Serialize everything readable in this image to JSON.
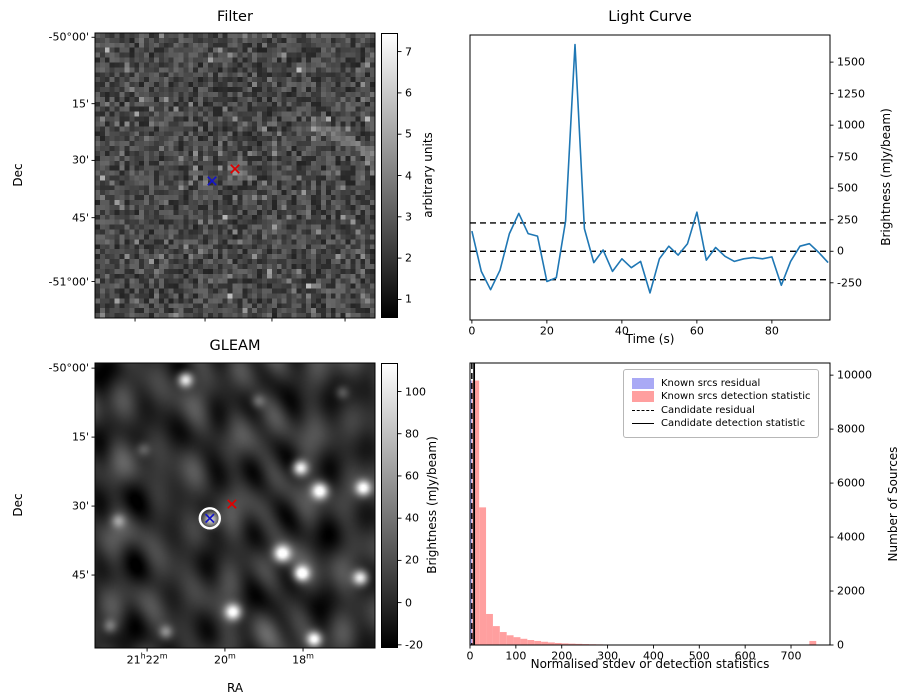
{
  "figure": {
    "background": "#ffffff"
  },
  "chart_data": [
    {
      "id": "filter",
      "type": "heatmap",
      "title": "Filter",
      "xlabel": "",
      "ylabel": "Dec",
      "ytick_labels": [
        "-50°00'",
        "15'",
        "30'",
        "45'",
        "-51°00'"
      ],
      "colorbar": {
        "label": "arbitrary units",
        "ticks": [
          7,
          6,
          5,
          4,
          3,
          2,
          1
        ],
        "range": [
          0.55,
          7.45
        ]
      },
      "style": "grainy grayscale noise map",
      "markers": [
        {
          "name": "candidate-x",
          "color": "#e00000",
          "fx": 0.5,
          "fy": 0.477
        },
        {
          "name": "known-source-x",
          "color": "#1515c8",
          "fx": 0.418,
          "fy": 0.519
        }
      ]
    },
    {
      "id": "light_curve",
      "type": "line",
      "title": "Light Curve",
      "xlabel": "Time (s)",
      "ylabel": "Brightness (mJy/beam)",
      "xticks": [
        0,
        20,
        40,
        60,
        80
      ],
      "yticks": [
        1500,
        1250,
        1000,
        750,
        500,
        250,
        0,
        -250
      ],
      "xlim": [
        -0.5,
        95.5
      ],
      "ylim": [
        -545,
        1715
      ],
      "dashed_levels": [
        225,
        0,
        -225
      ],
      "line_color": "#1f77b4",
      "x": [
        0,
        2.5,
        5,
        7.5,
        10,
        12.5,
        15,
        17.5,
        20,
        22.5,
        25,
        27.5,
        30,
        32.5,
        35,
        37.5,
        40,
        42.5,
        45,
        47.5,
        50,
        52.5,
        55,
        57.5,
        60,
        62.5,
        65,
        67.5,
        70,
        72.5,
        75,
        77.5,
        80,
        82.5,
        85,
        87.5,
        90,
        92.5,
        95
      ],
      "y": [
        160,
        -160,
        -305,
        -150,
        140,
        300,
        140,
        120,
        -240,
        -210,
        240,
        1640,
        180,
        -90,
        10,
        -160,
        -60,
        -130,
        -80,
        -330,
        -60,
        40,
        -30,
        60,
        310,
        -70,
        30,
        -40,
        -80,
        -60,
        -50,
        -60,
        -45,
        -270,
        -80,
        40,
        60,
        -10,
        -90
      ]
    },
    {
      "id": "gleam",
      "type": "heatmap",
      "title": "GLEAM",
      "xlabel": "RA",
      "ylabel": "Dec",
      "xtick_labels": [
        "21h22m",
        "20m",
        "18m"
      ],
      "ytick_labels": [
        "-50°00'",
        "15'",
        "30'",
        "45'"
      ],
      "colorbar": {
        "label": "Brightness (mJy/beam)",
        "ticks": [
          100,
          80,
          60,
          40,
          20,
          0,
          -20
        ],
        "range": [
          -21.5,
          113.5
        ]
      },
      "style": "smooth grayscale sky map with bright point sources",
      "markers": [
        {
          "name": "candidate-x",
          "color": "#e00000",
          "fx": 0.489,
          "fy": 0.495
        },
        {
          "name": "known-source-x",
          "color": "#1515c8",
          "fx": 0.41,
          "fy": 0.545,
          "circled": true
        }
      ]
    },
    {
      "id": "histogram",
      "type": "bar",
      "title": "",
      "xlabel": "Normalised stdev or detection statistics",
      "ylabel": "Number of Sources",
      "xticks": [
        0,
        100,
        200,
        300,
        400,
        500,
        600,
        700
      ],
      "yticks": [
        0,
        2000,
        4000,
        6000,
        8000,
        10000
      ],
      "xlim": [
        0,
        785
      ],
      "ylim": [
        0,
        10450
      ],
      "legend": [
        "Known srcs residual",
        "Known srcs detection statistic",
        "Candidate residual",
        "Candidate detection statistic"
      ],
      "colors": {
        "pink": "#ff9f9f",
        "blue": "#a9a9f5",
        "lines": "#000000"
      },
      "pink_bins": {
        "start": 5,
        "width": 15,
        "values": [
          9800,
          5100,
          1150,
          700,
          480,
          360,
          290,
          230,
          185,
          150,
          120,
          95,
          75,
          60,
          50,
          42,
          34,
          28,
          24,
          20,
          17,
          14,
          12,
          10,
          9,
          8,
          7,
          6,
          5,
          5,
          4,
          4,
          3,
          3,
          3,
          2,
          2,
          2,
          2,
          2,
          1,
          1,
          1,
          1,
          1,
          1,
          1,
          1,
          1,
          150
        ]
      },
      "blue_bins": {
        "start": 0,
        "width": 4,
        "values": [
          9800,
          500
        ]
      },
      "candidate_residual_x": 4,
      "candidate_detection_x": 9
    }
  ]
}
